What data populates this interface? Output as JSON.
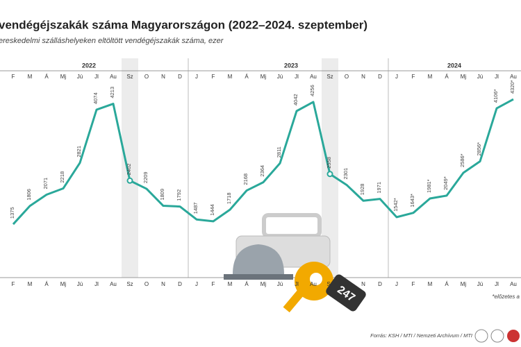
{
  "chart_data": {
    "type": "line",
    "title": "vendégéjszakák száma Magyarországon (2022–2024. szeptember)",
    "subtitle": "ereskedelmi szálláshelyeken eltöltött vendégéjszakák száma, ezer",
    "years": [
      "2022",
      "2023",
      "2024"
    ],
    "categories": [
      "F",
      "M",
      "Á",
      "Mj",
      "Jú",
      "Jl",
      "Au",
      "Sz",
      "O",
      "N",
      "D",
      "J",
      "F",
      "M",
      "Á",
      "Mj",
      "Jú",
      "Jl",
      "Au",
      "Sz",
      "O",
      "N",
      "D",
      "J",
      "F",
      "M",
      "Á",
      "Mj",
      "Jú",
      "Jl",
      "Au"
    ],
    "values": [
      1375,
      1806,
      2071,
      2218,
      2821,
      4074,
      4213,
      2402,
      2209,
      1809,
      1792,
      1487,
      1444,
      1718,
      2168,
      2364,
      2811,
      4042,
      4256,
      2558,
      2301,
      1928,
      1971,
      1542,
      1643,
      1981,
      2049,
      2586,
      2856,
      4106,
      4320
    ],
    "value_labels": [
      "1375",
      "1806",
      "2071",
      "2218",
      "2821",
      "4074",
      "4213",
      "2402",
      "2209",
      "1809",
      "1792",
      "1487",
      "1444",
      "1718",
      "2168",
      "2364",
      "2811",
      "4042",
      "4256",
      "2558",
      "2301",
      "1928",
      "1971",
      "1542*",
      "1643*",
      "1981*",
      "2049*",
      "2586*",
      "2856*",
      "4106*",
      "4320*"
    ],
    "color": "#2aa89a",
    "ylim": [
      1000,
      4500
    ],
    "footnote": "*előzetes a",
    "source": "Forrás: KSH / MTI / Nemzeti Archívum / MTI",
    "tag": "247"
  }
}
